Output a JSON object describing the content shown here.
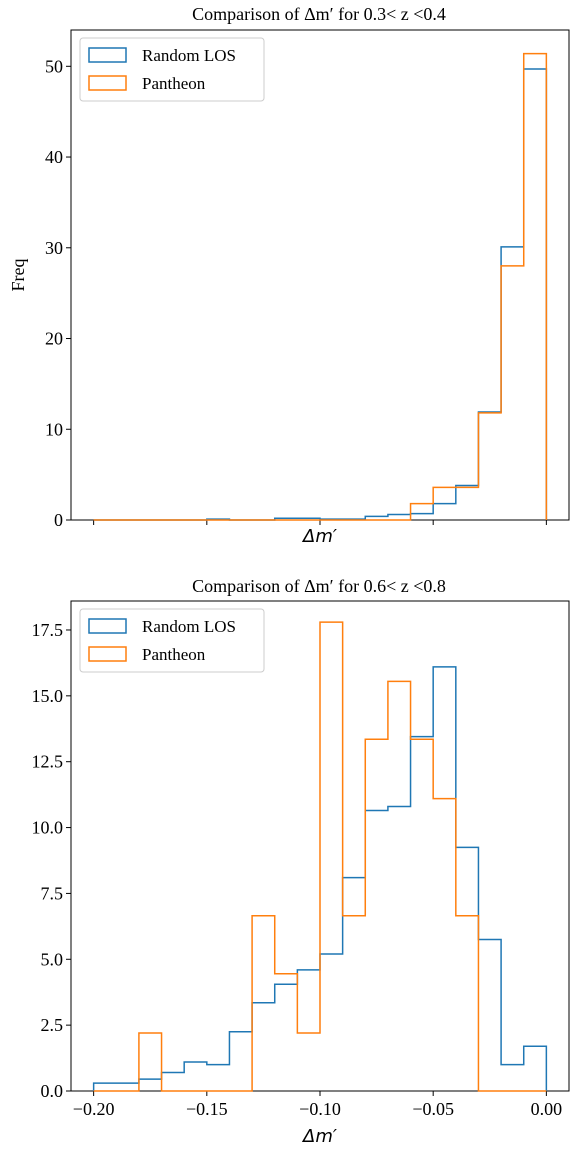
{
  "chart_data": [
    {
      "type": "histogram-step",
      "title": "Comparison of Δm′ for 0.3< z <0.4",
      "xlabel": "Δm′",
      "ylabel": "Freq",
      "xlim": [
        -0.21,
        0.01
      ],
      "ylim": [
        0,
        54
      ],
      "xticks": [
        -0.2,
        -0.15,
        -0.1,
        -0.05,
        0.0
      ],
      "show_x_tick_labels": false,
      "yticks": [
        0,
        10,
        20,
        30,
        40,
        50
      ],
      "ytick_labels": [
        "0",
        "10",
        "20",
        "30",
        "40",
        "50"
      ],
      "legend": "top-left",
      "bin_edges": [
        -0.2,
        -0.19,
        -0.18,
        -0.17,
        -0.16,
        -0.15,
        -0.14,
        -0.13,
        -0.12,
        -0.11,
        -0.1,
        -0.09,
        -0.08,
        -0.07,
        -0.06,
        -0.05,
        -0.04,
        -0.03,
        -0.02,
        -0.01,
        0.0
      ],
      "series": [
        {
          "name": "Random LOS",
          "color": "#1f77b4",
          "values": [
            0,
            0,
            0,
            0,
            0,
            0.1,
            0,
            0,
            0.2,
            0.2,
            0.1,
            0.1,
            0.4,
            0.6,
            0.7,
            1.8,
            3.8,
            11.9,
            30.1,
            49.7
          ]
        },
        {
          "name": "Pantheon",
          "color": "#ff7f0e",
          "values": [
            0,
            0,
            0,
            0,
            0,
            0,
            0,
            0,
            0,
            0,
            0,
            0,
            0,
            0,
            1.8,
            3.6,
            3.6,
            11.8,
            28.0,
            51.4
          ]
        }
      ]
    },
    {
      "type": "histogram-step",
      "title": "Comparison of Δm′ for 0.6< z <0.8",
      "xlabel": "Δm′",
      "ylabel": "",
      "xlim": [
        -0.21,
        0.01
      ],
      "ylim": [
        0,
        18.6
      ],
      "xticks": [
        -0.2,
        -0.15,
        -0.1,
        -0.05,
        0.0
      ],
      "xtick_labels": [
        "−0.20",
        "−0.15",
        "−0.10",
        "−0.05",
        "0.00"
      ],
      "show_x_tick_labels": true,
      "yticks": [
        0,
        2.5,
        5.0,
        7.5,
        10.0,
        12.5,
        15.0,
        17.5
      ],
      "ytick_labels": [
        "0.0",
        "2.5",
        "5.0",
        "7.5",
        "10.0",
        "12.5",
        "15.0",
        "17.5"
      ],
      "legend": "top-left",
      "bin_edges": [
        -0.2,
        -0.19,
        -0.18,
        -0.17,
        -0.16,
        -0.15,
        -0.14,
        -0.13,
        -0.12,
        -0.11,
        -0.1,
        -0.09,
        -0.08,
        -0.07,
        -0.06,
        -0.05,
        -0.04,
        -0.03,
        -0.02,
        -0.01,
        0.0
      ],
      "series": [
        {
          "name": "Random LOS",
          "color": "#1f77b4",
          "values": [
            0.3,
            0.3,
            0.45,
            0.7,
            1.1,
            1.0,
            2.25,
            3.35,
            4.05,
            4.6,
            5.2,
            8.1,
            10.65,
            10.8,
            13.45,
            16.1,
            9.25,
            5.75,
            1.0,
            1.7
          ]
        },
        {
          "name": "Pantheon",
          "color": "#ff7f0e",
          "values": [
            0,
            0,
            2.2,
            0,
            0,
            0,
            0,
            6.65,
            4.45,
            2.2,
            17.8,
            6.65,
            13.35,
            15.55,
            13.35,
            11.1,
            6.65,
            0,
            0,
            0
          ]
        }
      ]
    }
  ]
}
